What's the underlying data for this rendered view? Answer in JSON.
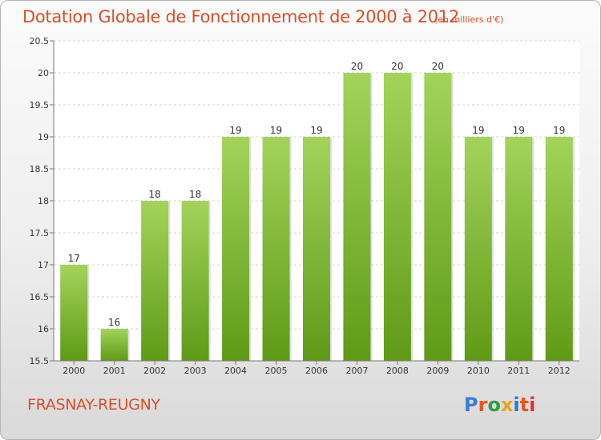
{
  "header": {
    "title": "Dotation Globale de Fonctionnement de 2000 à 2012",
    "unit": "(en milliers d'€)"
  },
  "footer": {
    "commune": "FRASNAY-REUGNY",
    "logo": "Proxiti"
  },
  "colors": {
    "title": "#d94f2a",
    "bar_light": "#a3d45a",
    "bar_dark": "#5f9a16"
  },
  "chart_data": {
    "type": "bar",
    "title": "Dotation Globale de Fonctionnement de 2000 à 2012",
    "subtitle": "(en milliers d'€)",
    "categories": [
      "2000",
      "2001",
      "2002",
      "2003",
      "2004",
      "2005",
      "2006",
      "2007",
      "2008",
      "2009",
      "2010",
      "2011",
      "2012"
    ],
    "values": [
      17,
      16,
      18,
      18,
      19,
      19,
      19,
      20,
      20,
      20,
      19,
      19,
      19
    ],
    "data_labels": [
      "17",
      "16",
      "18",
      "18",
      "19",
      "19",
      "19",
      "20",
      "20",
      "20",
      "19",
      "19",
      "19"
    ],
    "ylim": [
      15.5,
      20.5
    ],
    "yticks": [
      "15.5",
      "16",
      "16.5",
      "17",
      "17.5",
      "18",
      "18.5",
      "19",
      "19.5",
      "20",
      "20.5"
    ],
    "grid": true,
    "legend": "none"
  }
}
